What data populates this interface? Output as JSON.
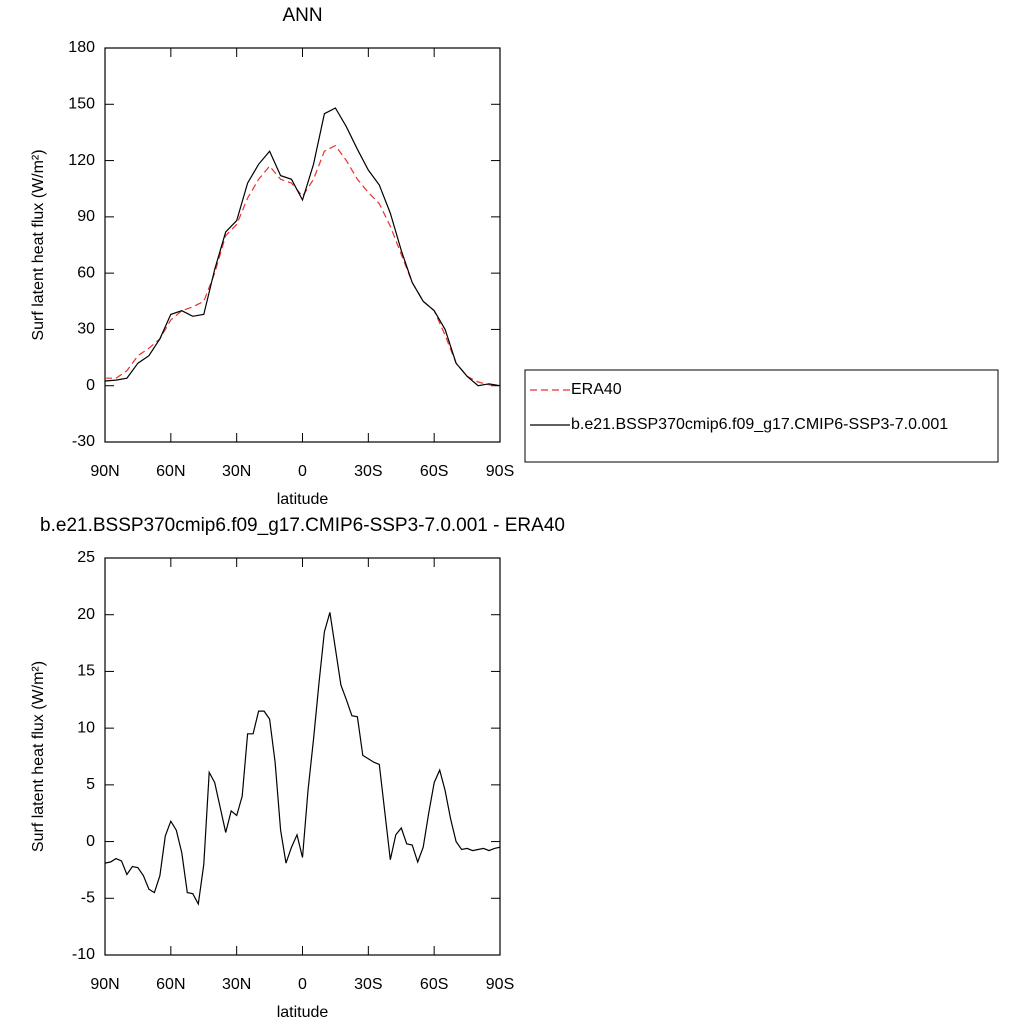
{
  "chart_data": [
    {
      "type": "line",
      "title": "ANN",
      "xlabel": "latitude",
      "ylabel": "Surf latent heat flux (W/m²)",
      "x": [
        90,
        85,
        80,
        75,
        70,
        65,
        60,
        55,
        50,
        45,
        40,
        35,
        30,
        25,
        20,
        15,
        10,
        5,
        0,
        -5,
        -10,
        -15,
        -20,
        -25,
        -30,
        -35,
        -40,
        -45,
        -50,
        -55,
        -60,
        -65,
        -70,
        -75,
        -80,
        -85,
        -90
      ],
      "series": [
        {
          "name": "ERA40",
          "color": "#e8302e",
          "dashed": true,
          "values": [
            4,
            4,
            8,
            16,
            20,
            25,
            35,
            40,
            42,
            45,
            60,
            80,
            86,
            100,
            110,
            117,
            110,
            108,
            101,
            110,
            125,
            128,
            120,
            110,
            103,
            97,
            85,
            70,
            55,
            45,
            40,
            27,
            12,
            5,
            2,
            0.5,
            0
          ]
        },
        {
          "name": "b.e21.BSSP370cmip6.f09_g17.CMIP6-SSP3-7.0.001",
          "color": "#000000",
          "dashed": false,
          "values": [
            2.5,
            3,
            4,
            12,
            16,
            25,
            38,
            40,
            37,
            38,
            62,
            82,
            88,
            108,
            118,
            125,
            112,
            110,
            99,
            118,
            145,
            148,
            138,
            126,
            115,
            107,
            92,
            72,
            55,
            45,
            40,
            30,
            12,
            5,
            0,
            1,
            0
          ]
        }
      ],
      "xlim": [
        90,
        -90
      ],
      "xticks": [
        {
          "value": 90,
          "label": "90N"
        },
        {
          "value": 60,
          "label": "60N"
        },
        {
          "value": 30,
          "label": "30N"
        },
        0,
        {
          "value": -30,
          "label": "30S"
        },
        {
          "value": -60,
          "label": "60S"
        },
        {
          "value": -90,
          "label": "90S"
        }
      ],
      "ylim": [
        -30,
        180
      ],
      "yticks": [
        -30,
        0,
        30,
        60,
        90,
        120,
        150,
        180
      ],
      "legend": "right"
    },
    {
      "type": "line",
      "title": "b.e21.BSSP370cmip6.f09_g17.CMIP6-SSP3-7.0.001 - ERA40",
      "xlabel": "latitude",
      "ylabel": "Surf latent heat flux (W/m²)",
      "x": [
        90,
        87.5,
        85,
        82.5,
        80,
        77.5,
        75,
        72.5,
        70,
        67.5,
        65,
        62.5,
        60,
        57.5,
        55,
        52.5,
        50,
        47.5,
        45,
        42.5,
        40,
        37.5,
        35,
        32.5,
        30,
        27.5,
        25,
        22.5,
        20,
        17.5,
        15,
        12.5,
        10,
        7.5,
        5,
        2.5,
        0,
        -2.5,
        -5,
        -7.5,
        -10,
        -12.5,
        -15,
        -17.5,
        -20,
        -22.5,
        -25,
        -27.5,
        -30,
        -32.5,
        -35,
        -37.5,
        -40,
        -42.5,
        -45,
        -47.5,
        -50,
        -52.5,
        -55,
        -57.5,
        -60,
        -62.5,
        -65,
        -67.5,
        -70,
        -72.5,
        -75,
        -77.5,
        -80,
        -82.5,
        -85,
        -87.5,
        -90
      ],
      "values": [
        -1.9,
        -1.8,
        -1.5,
        -1.7,
        -2.9,
        -2.2,
        -2.3,
        -3.0,
        -4.2,
        -4.5,
        -3.0,
        0.5,
        1.8,
        1.0,
        -1.0,
        -4.5,
        -4.6,
        -5.5,
        -2.0,
        6.1,
        5.2,
        3.0,
        0.8,
        2.7,
        2.3,
        4.0,
        9.5,
        9.5,
        11.5,
        11.5,
        10.8,
        7.0,
        1.0,
        -1.9,
        -0.5,
        0.6,
        -1.4,
        4.5,
        9.0,
        14.0,
        18.5,
        20.2,
        17.0,
        13.8,
        12.5,
        11.1,
        11.0,
        7.6,
        7.3,
        7.0,
        6.8,
        2.6,
        -1.6,
        0.6,
        1.2,
        -0.2,
        -0.3,
        -1.8,
        -0.5,
        2.5,
        5.2,
        6.3,
        4.5,
        2.0,
        0,
        -0.7,
        -0.6,
        -0.8,
        -0.7,
        -0.6,
        -0.8,
        -0.6,
        -0.5
      ],
      "color": "#000000",
      "xlim": [
        90,
        -90
      ],
      "xticks": [
        {
          "value": 90,
          "label": "90N"
        },
        {
          "value": 60,
          "label": "60N"
        },
        {
          "value": 30,
          "label": "30N"
        },
        0,
        {
          "value": -30,
          "label": "30S"
        },
        {
          "value": -60,
          "label": "60S"
        },
        {
          "value": -90,
          "label": "90S"
        }
      ],
      "ylim": [
        -10,
        25
      ],
      "yticks": [
        -10,
        -5,
        0,
        5,
        10,
        15,
        20,
        25
      ]
    }
  ]
}
